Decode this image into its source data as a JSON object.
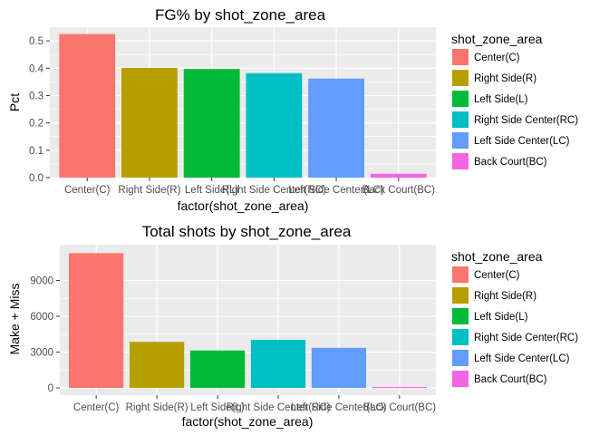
{
  "chart_data": [
    {
      "type": "bar",
      "title": "FG% by shot_zone_area",
      "xlabel": "factor(shot_zone_area)",
      "ylabel": "Pct",
      "categories": [
        "Center(C)",
        "Right Side(R)",
        "Left Side(L)",
        "Right Side Center(RC)",
        "Left Side Center(LC)",
        "Back Court(BC)"
      ],
      "values": [
        0.525,
        0.401,
        0.397,
        0.382,
        0.362,
        0.014
      ],
      "ylim": [
        0,
        0.55
      ],
      "yticks": [
        0.0,
        0.1,
        0.2,
        0.3,
        0.4,
        0.5
      ],
      "ytick_labels": [
        "0.0",
        "0.1",
        "0.2",
        "0.3",
        "0.4",
        "0.5"
      ],
      "legend": {
        "title": "shot_zone_area",
        "position": "right",
        "entries": [
          "Center(C)",
          "Right Side(R)",
          "Left Side(L)",
          "Right Side Center(RC)",
          "Left Side Center(LC)",
          "Back Court(BC)"
        ]
      },
      "grid": true
    },
    {
      "type": "bar",
      "title": "Total shots by shot_zone_area",
      "xlabel": "factor(shot_zone_area)",
      "ylabel": "Make + Miss",
      "categories": [
        "Center(C)",
        "Right Side(R)",
        "Left Side(L)",
        "Right Side Center(RC)",
        "Left Side Center(LC)",
        "Back Court(BC)"
      ],
      "values": [
        11289,
        3859,
        3132,
        4026,
        3364,
        83
      ],
      "ylim": [
        -600,
        12000
      ],
      "yticks": [
        0,
        3000,
        6000,
        9000
      ],
      "ytick_labels": [
        "0",
        "3000",
        "6000",
        "9000"
      ],
      "legend": {
        "title": "shot_zone_area",
        "position": "right",
        "entries": [
          "Center(C)",
          "Right Side(R)",
          "Left Side(L)",
          "Right Side Center(RC)",
          "Left Side Center(LC)",
          "Back Court(BC)"
        ]
      },
      "grid": true
    }
  ],
  "colors": [
    "#F8766D",
    "#B79F00",
    "#00BA38",
    "#00BFC4",
    "#619CFF",
    "#F564E3"
  ],
  "panel_background": "#EBEBEB",
  "grid_color": "#ffffff"
}
